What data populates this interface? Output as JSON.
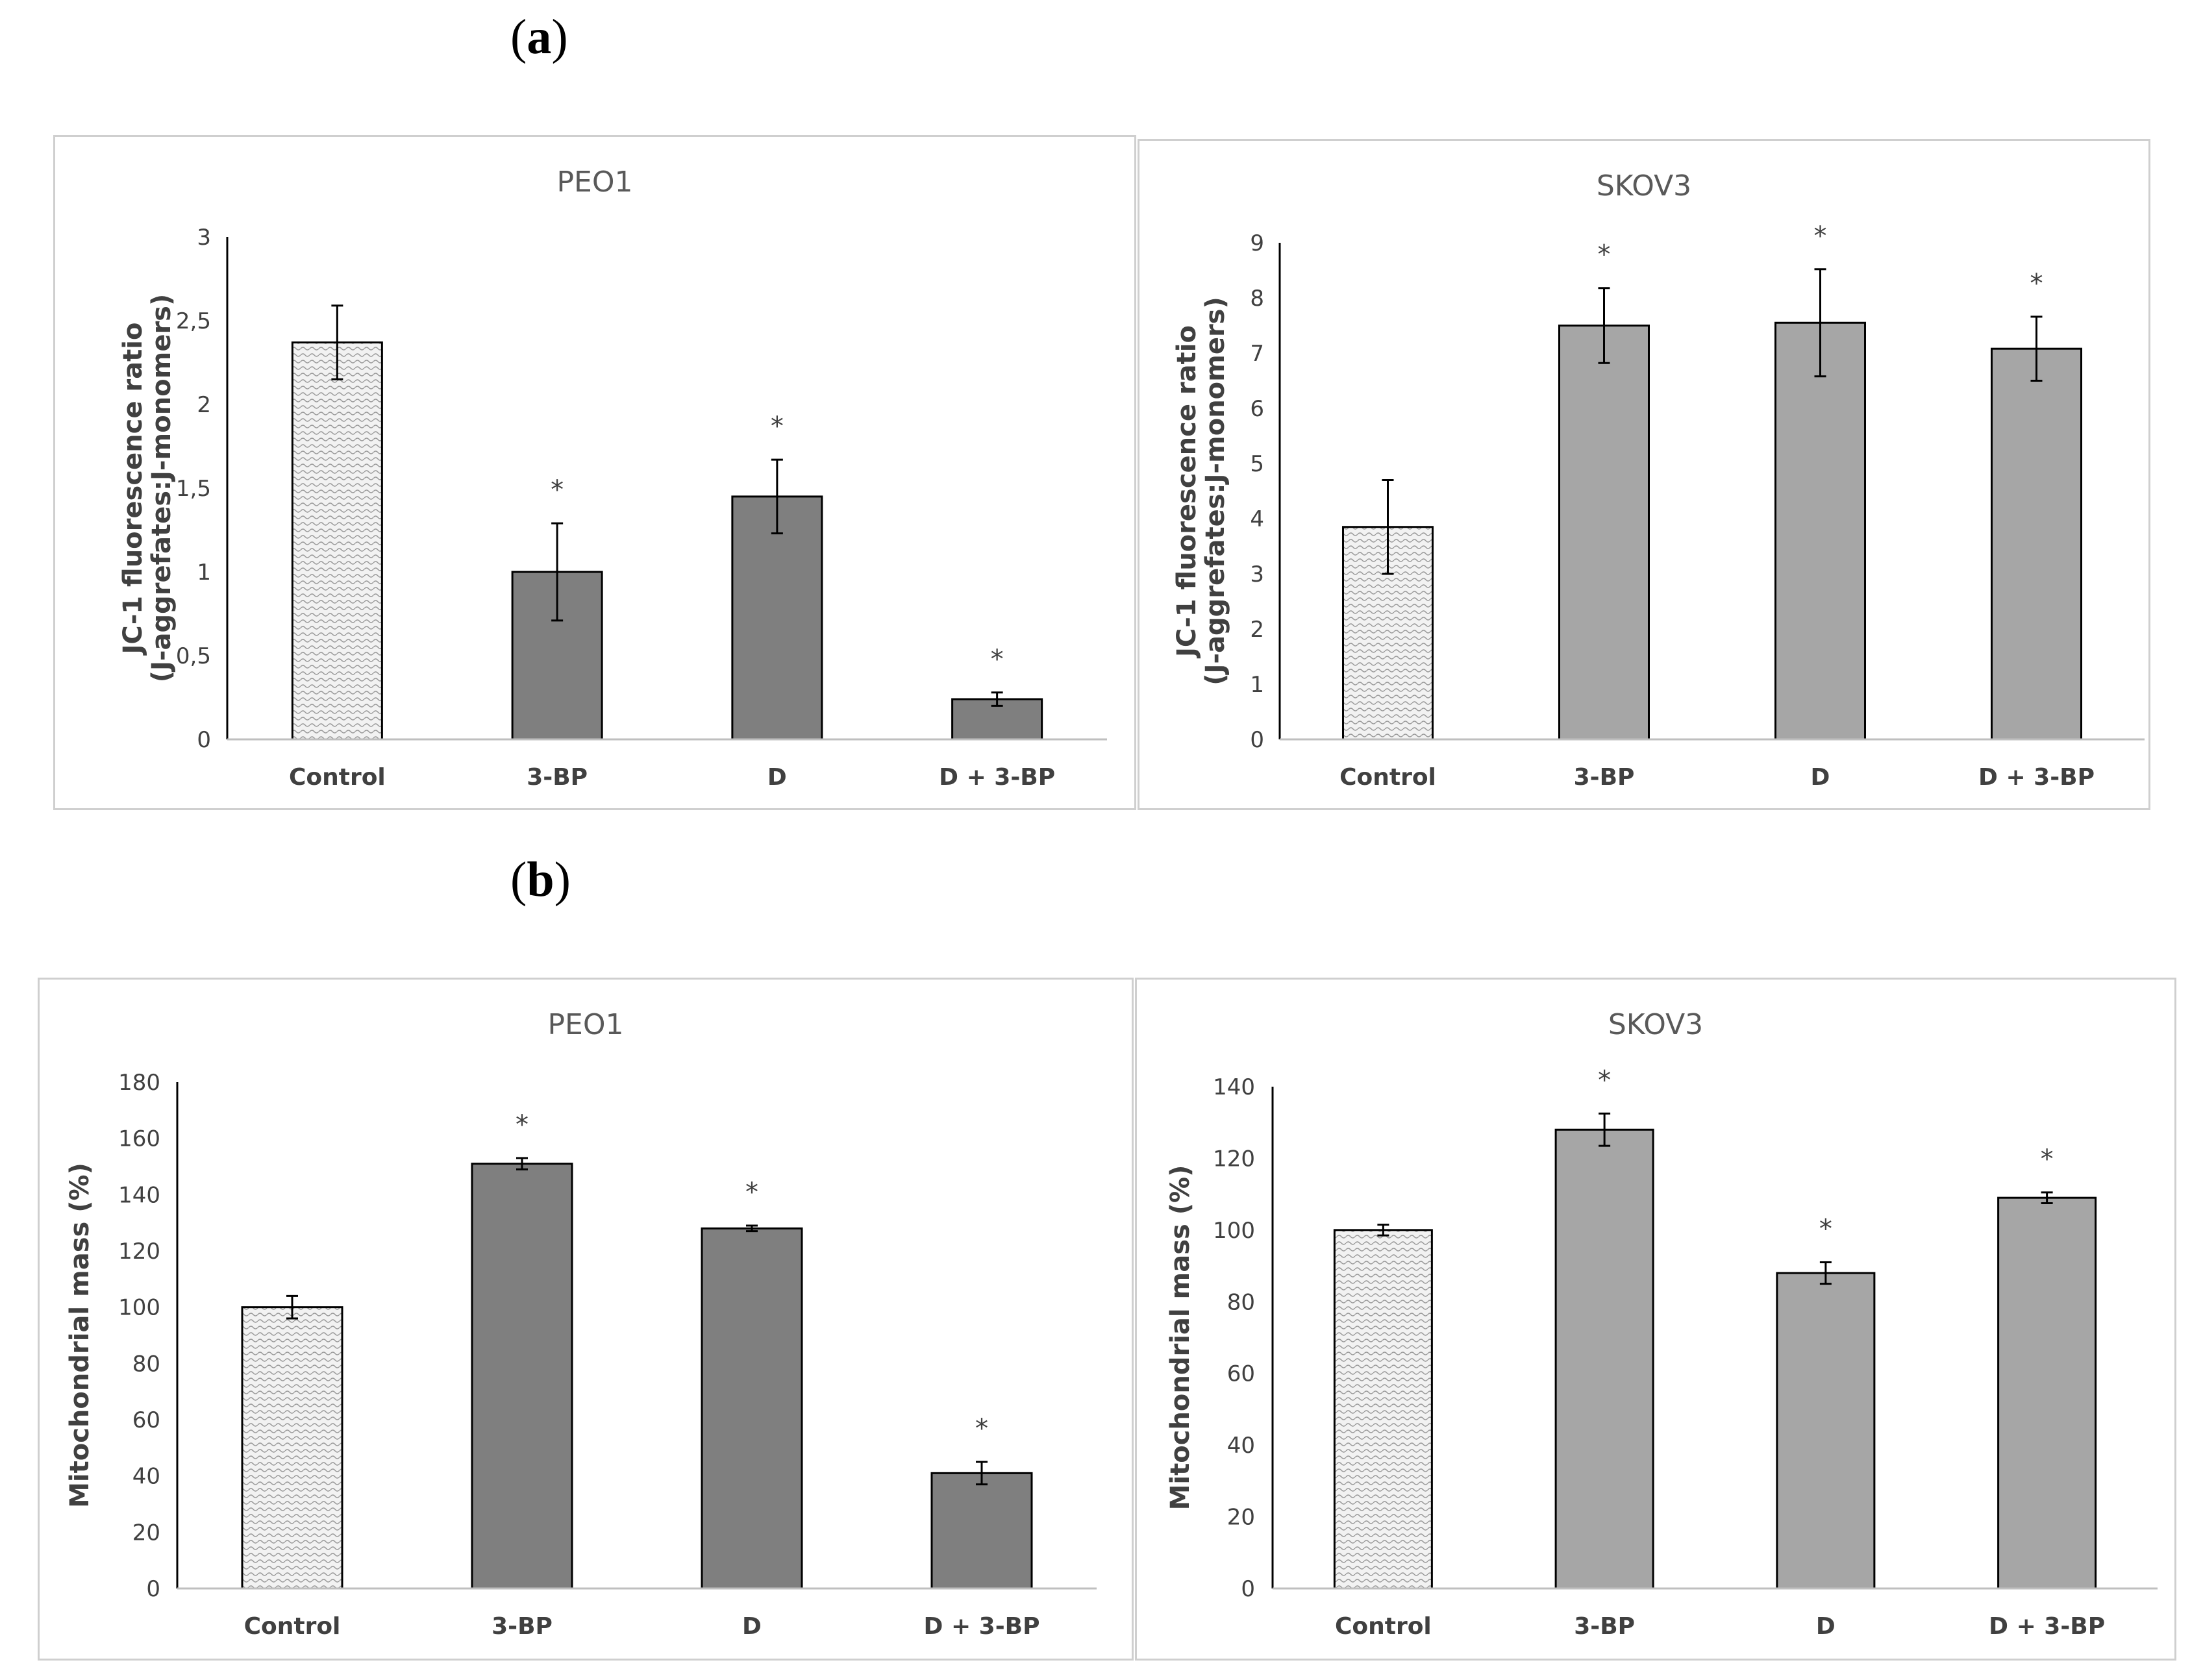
{
  "panels": [
    {
      "label": "a"
    },
    {
      "label": "b"
    }
  ],
  "colors": {
    "dark_bar": "#7f7f7f",
    "light_bar": "#a6a6a6",
    "control_fill": "#f2f2f2",
    "axis": "#000000",
    "text": "#404040",
    "frame": "#cfcfcf"
  },
  "chart_data": [
    {
      "id": "a-peo1",
      "type": "bar",
      "title": "PEO1",
      "ylabel": [
        "JC-1 fluorescence ratio",
        "(J-aggrefates:J-monomers)"
      ],
      "categories": [
        "Control",
        "3-BP",
        "D",
        "D + 3-BP"
      ],
      "values": [
        2.37,
        1.0,
        1.45,
        0.24
      ],
      "errors": [
        0.22,
        0.29,
        0.22,
        0.04
      ],
      "significant": [
        false,
        true,
        true,
        true
      ],
      "yticks": [
        "0",
        "0,5",
        "1",
        "1,5",
        "2",
        "2,5",
        "3"
      ],
      "ylim": [
        0,
        3
      ],
      "bar_color": "dark",
      "marker": "*"
    },
    {
      "id": "a-skov3",
      "type": "bar",
      "title": "SKOV3",
      "ylabel": [
        "JC-1 fluorescence ratio",
        "(J-aggrefates:J-monomers)"
      ],
      "categories": [
        "Control",
        "3-BP",
        "D",
        "D + 3-BP"
      ],
      "values": [
        3.85,
        7.5,
        7.55,
        7.08
      ],
      "errors": [
        0.85,
        0.68,
        0.97,
        0.58
      ],
      "significant": [
        false,
        true,
        true,
        true
      ],
      "yticks": [
        "0",
        "1",
        "2",
        "3",
        "4",
        "5",
        "6",
        "7",
        "8",
        "9"
      ],
      "ylim": [
        0,
        9
      ],
      "bar_color": "light",
      "marker": "*"
    },
    {
      "id": "b-peo1",
      "type": "bar",
      "title": "PEO1",
      "ylabel": [
        "Mitochondrial mass (%)"
      ],
      "categories": [
        "Control",
        "3-BP",
        "D",
        "D + 3-BP"
      ],
      "values": [
        100,
        151,
        128,
        41
      ],
      "errors": [
        4,
        2,
        1,
        4
      ],
      "significant": [
        false,
        true,
        true,
        true
      ],
      "yticks": [
        "0",
        "20",
        "40",
        "60",
        "80",
        "100",
        "120",
        "140",
        "160",
        "180"
      ],
      "ylim": [
        0,
        180
      ],
      "bar_color": "dark",
      "marker": "*"
    },
    {
      "id": "b-skov3",
      "type": "bar",
      "title": "SKOV3",
      "ylabel": [
        "Mitochondrial mass (%)"
      ],
      "categories": [
        "Control",
        "3-BP",
        "D",
        "D + 3-BP"
      ],
      "values": [
        100,
        128,
        88,
        109
      ],
      "errors": [
        1.5,
        4.5,
        3,
        1.5
      ],
      "significant": [
        false,
        true,
        true,
        true
      ],
      "yticks": [
        "0",
        "20",
        "40",
        "60",
        "80",
        "100",
        "120",
        "140"
      ],
      "ylim": [
        0,
        140
      ],
      "bar_color": "light",
      "marker": "*"
    }
  ]
}
